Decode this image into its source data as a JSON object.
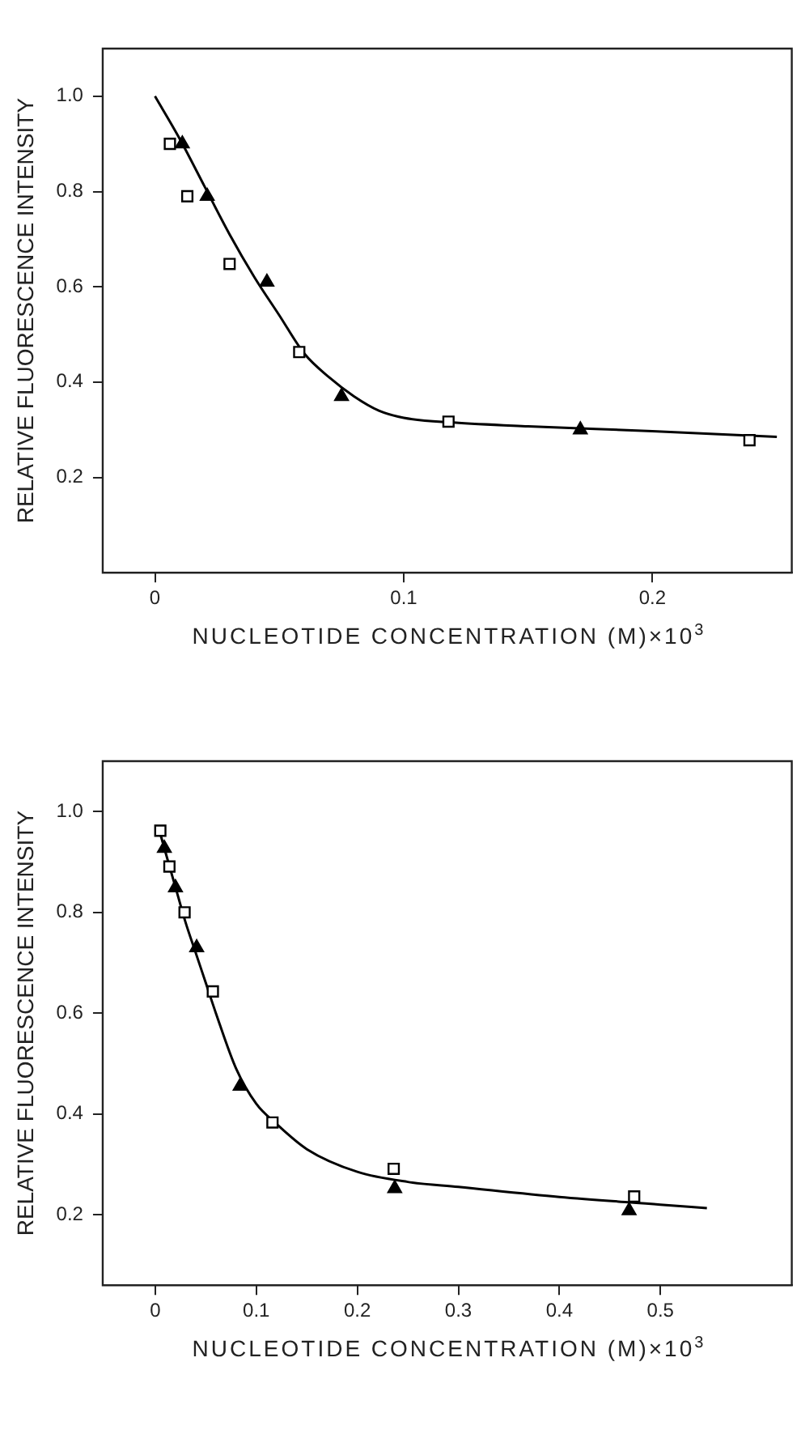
{
  "chart_data": [
    {
      "type": "scatter",
      "xlabel": "NUCLEOTIDE CONCENTRATION (M)×10$^{3}$",
      "ylabel": "RELATIVE FLUORESCENCE INTENSITY",
      "xlim": [
        -0.021,
        0.256
      ],
      "ylim": [
        0,
        1.1
      ],
      "xticks": [
        0,
        0.1,
        0.2
      ],
      "yticks": [
        {
          "value": 0.2,
          "label": "0.2"
        },
        {
          "value": 0.4,
          "label": "0.4"
        },
        {
          "value": 0.6,
          "label": "0.6"
        },
        {
          "value": 0.8,
          "label": "0.8"
        },
        {
          "value": 1,
          "label": "1.0"
        }
      ],
      "grid": false,
      "legend": false,
      "series": [
        {
          "color": "#000000",
          "marker": "square",
          "x": [
            0.006,
            0.013,
            0.03,
            0.058,
            0.118,
            0.239
          ],
          "values": [
            0.9,
            0.79,
            0.648,
            0.463,
            0.317,
            0.278
          ]
        },
        {
          "color": "#000000",
          "marker": "triangle",
          "x": [
            0.011,
            0.021,
            0.045,
            0.075,
            0.171
          ],
          "values": [
            0.9,
            0.79,
            0.61,
            0.37,
            0.3
          ]
        },
        {
          "type": "line",
          "color": "#000000",
          "marker": "none",
          "x": [
            0,
            0.01,
            0.02,
            0.03,
            0.04,
            0.05,
            0.06,
            0.07,
            0.08,
            0.09,
            0.1,
            0.12,
            0.15,
            0.2,
            0.25
          ],
          "values": [
            1.0,
            0.91,
            0.81,
            0.71,
            0.62,
            0.54,
            0.46,
            0.41,
            0.37,
            0.34,
            0.325,
            0.315,
            0.307,
            0.297,
            0.285
          ]
        }
      ]
    },
    {
      "type": "scatter",
      "xlabel": "NUCLEOTIDE CONCENTRATION (M)×10$^{3}$",
      "ylabel": "RELATIVE FLUORESCENCE INTENSITY",
      "xlim": [
        -0.052,
        0.63
      ],
      "ylim": [
        0.06,
        1.1
      ],
      "xticks": [
        0,
        0.1,
        0.2,
        0.3,
        0.4,
        0.5
      ],
      "yticks": [
        {
          "value": 0.2,
          "label": "0.2"
        },
        {
          "value": 0.4,
          "label": "0.4"
        },
        {
          "value": 0.6,
          "label": "0.6"
        },
        {
          "value": 0.8,
          "label": "0.8"
        },
        {
          "value": 1,
          "label": "1.0"
        }
      ],
      "grid": false,
      "legend": false,
      "series": [
        {
          "color": "#000000",
          "marker": "square",
          "x": [
            0.005,
            0.014,
            0.029,
            0.057,
            0.116,
            0.236,
            0.474
          ],
          "values": [
            0.962,
            0.891,
            0.8,
            0.643,
            0.383,
            0.291,
            0.236
          ]
        },
        {
          "color": "#000000",
          "marker": "triangle",
          "x": [
            0.009,
            0.02,
            0.041,
            0.084,
            0.237,
            0.469
          ],
          "values": [
            0.927,
            0.849,
            0.73,
            0.455,
            0.252,
            0.208
          ]
        },
        {
          "type": "line",
          "color": "#000000",
          "marker": "none",
          "x": [
            0.003,
            0.01,
            0.02,
            0.03,
            0.04,
            0.05,
            0.06,
            0.08,
            0.1,
            0.12,
            0.15,
            0.2,
            0.25,
            0.3,
            0.4,
            0.5,
            0.546
          ],
          "values": [
            0.97,
            0.92,
            0.85,
            0.78,
            0.72,
            0.66,
            0.6,
            0.49,
            0.42,
            0.38,
            0.33,
            0.285,
            0.265,
            0.255,
            0.235,
            0.22,
            0.213
          ]
        }
      ]
    }
  ]
}
